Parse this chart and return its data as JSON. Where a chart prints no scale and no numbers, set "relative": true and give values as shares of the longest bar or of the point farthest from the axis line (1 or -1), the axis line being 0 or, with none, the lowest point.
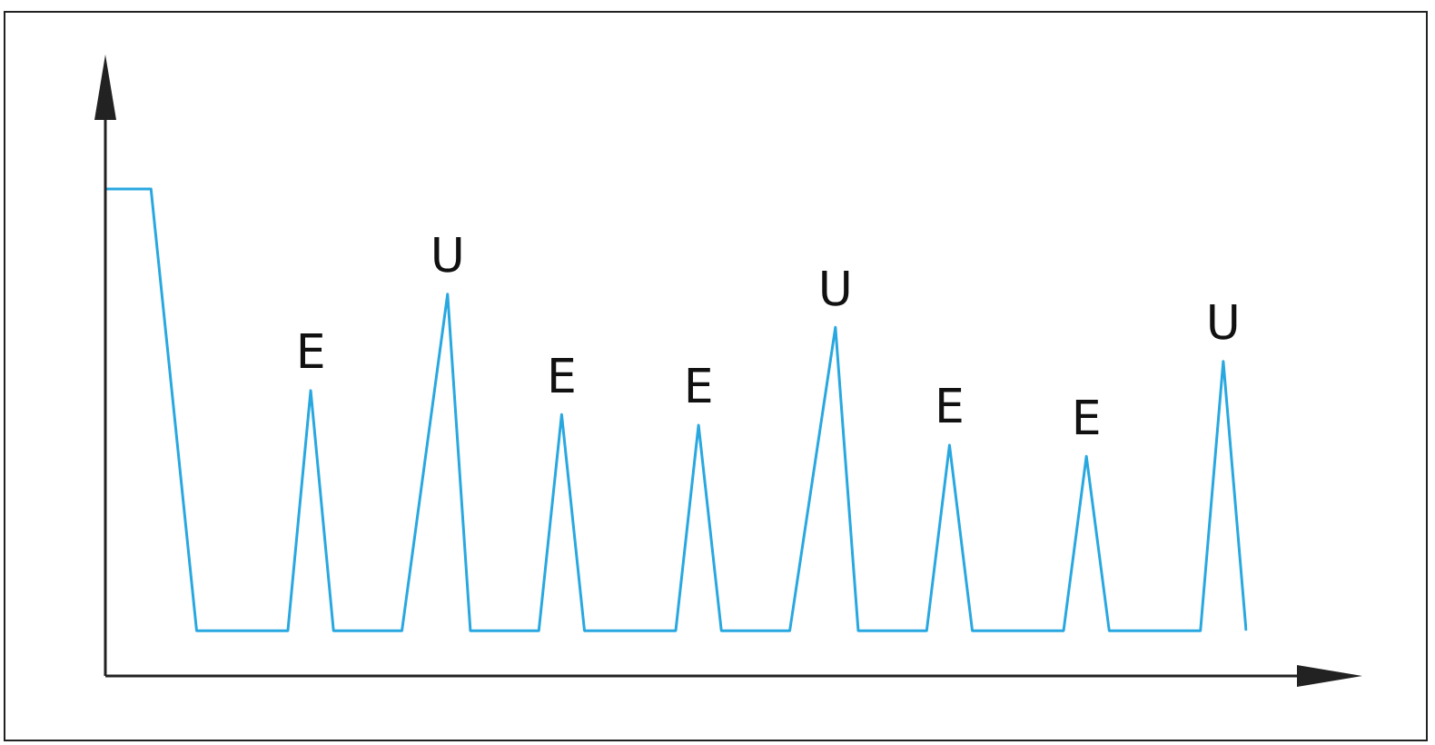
{
  "chart_data": {
    "type": "line",
    "relative": true,
    "marker": "none",
    "legend": false,
    "categories": [
      null,
      null,
      null,
      null,
      null,
      null,
      null,
      null,
      null,
      null,
      null,
      null,
      null,
      null,
      null,
      null,
      null,
      null,
      null,
      null,
      null,
      null,
      null,
      null,
      null,
      null,
      null,
      null,
      null,
      null,
      null,
      null,
      null,
      null,
      null,
      null,
      null,
      null,
      null,
      null,
      null,
      null,
      null,
      null,
      null,
      null,
      null,
      null,
      null,
      null,
      null
    ],
    "series": [
      {
        "color": "#29a8e0",
        "values": [
          1,
          1,
          1,
          null,
          0.093,
          0.093,
          0.093,
          0.093,
          0.093,
          0.586,
          0.093,
          0.093,
          0.093,
          0.093,
          null,
          0.784,
          0.093,
          0.093,
          0.093,
          0.093,
          0.537,
          0.093,
          0.093,
          0.093,
          0.093,
          0.093,
          0.515,
          0.093,
          0.093,
          0.093,
          0.093,
          null,
          0.716,
          0.093,
          0.093,
          0.093,
          0.093,
          0.474,
          0.093,
          0.093,
          0.093,
          0.093,
          0.093,
          0.451,
          0.093,
          0.093,
          0.093,
          0.093,
          0.093,
          0.646,
          0.093
        ]
      }
    ],
    "annotations": [
      "E",
      "U",
      "E",
      "E",
      "U",
      "E",
      "E",
      "U"
    ]
  }
}
